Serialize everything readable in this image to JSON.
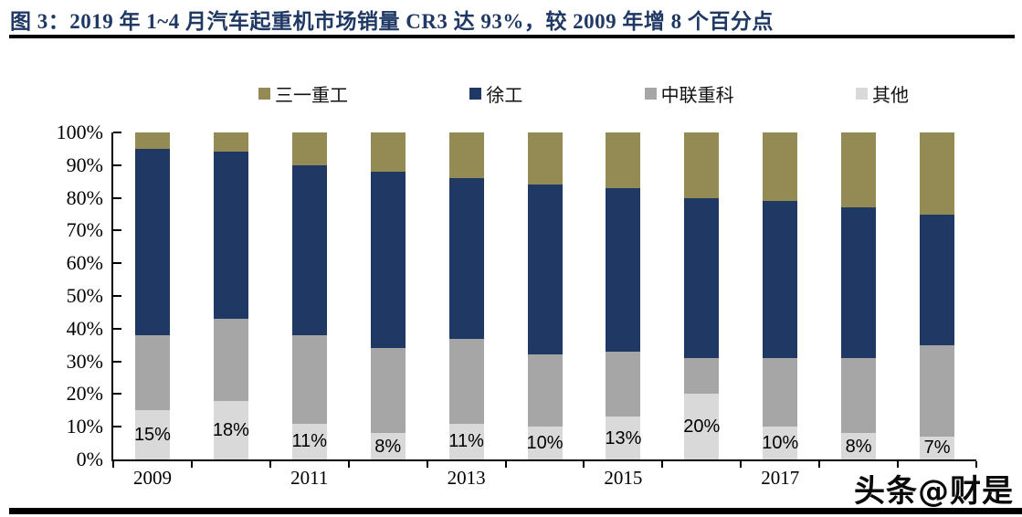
{
  "figure": {
    "title": "图 3：2019 年 1~4 月汽车起重机市场销量 CR3 达 93%，较 2009 年增 8 个百分点",
    "watermark": "头条@财是"
  },
  "chart_data": {
    "type": "bar",
    "variant": "stacked-100-percent",
    "title": "2019 年 1~4 月汽车起重机市场销量 CR3 达 93%，较 2009 年增 8 个百分点",
    "categories": [
      "2009",
      "2010",
      "2011",
      "2012",
      "2013",
      "2014",
      "2015",
      "2016",
      "2017",
      "2018",
      "2019"
    ],
    "series": [
      {
        "key": "others",
        "name": "其他",
        "color": "#D9D9D9",
        "values": [
          15,
          18,
          11,
          8,
          11,
          10,
          13,
          20,
          10,
          8,
          7
        ]
      },
      {
        "key": "zoomlion",
        "name": "中联重科",
        "color": "#A6A6A6",
        "values": [
          23,
          25,
          27,
          26,
          26,
          22,
          20,
          11,
          21,
          23,
          28
        ]
      },
      {
        "key": "xcmg",
        "name": "徐工",
        "color": "#1F3864",
        "values": [
          57,
          51,
          52,
          54,
          49,
          52,
          50,
          49,
          48,
          46,
          40
        ]
      },
      {
        "key": "sany",
        "name": "三一重工",
        "color": "#948A54",
        "values": [
          5,
          6,
          10,
          12,
          14,
          16,
          17,
          20,
          21,
          23,
          25
        ]
      }
    ],
    "data_labels": {
      "series": "其他",
      "values": [
        "15%",
        "18%",
        "11%",
        "8%",
        "11%",
        "10%",
        "13%",
        "20%",
        "10%",
        "8%",
        "7%"
      ]
    },
    "legend": [
      {
        "key": "sany",
        "label": "三一重工",
        "color": "#948A54"
      },
      {
        "key": "xcmg",
        "label": "徐工",
        "color": "#1F3864"
      },
      {
        "key": "zoomlion",
        "label": "中联重科",
        "color": "#A6A6A6"
      },
      {
        "key": "others",
        "label": "其他",
        "color": "#D9D9D9"
      }
    ],
    "y_axis": {
      "ticks": [
        "100%",
        "90%",
        "80%",
        "70%",
        "60%",
        "50%",
        "40%",
        "30%",
        "20%",
        "10%",
        "0%"
      ],
      "range": [
        0,
        100
      ],
      "grid": false
    },
    "x_axis": {
      "tick_labels": [
        "2009",
        "2011",
        "2013",
        "2015",
        "2017"
      ],
      "label_every": 2
    },
    "legend_position": "top",
    "axis_color": "#000000"
  }
}
